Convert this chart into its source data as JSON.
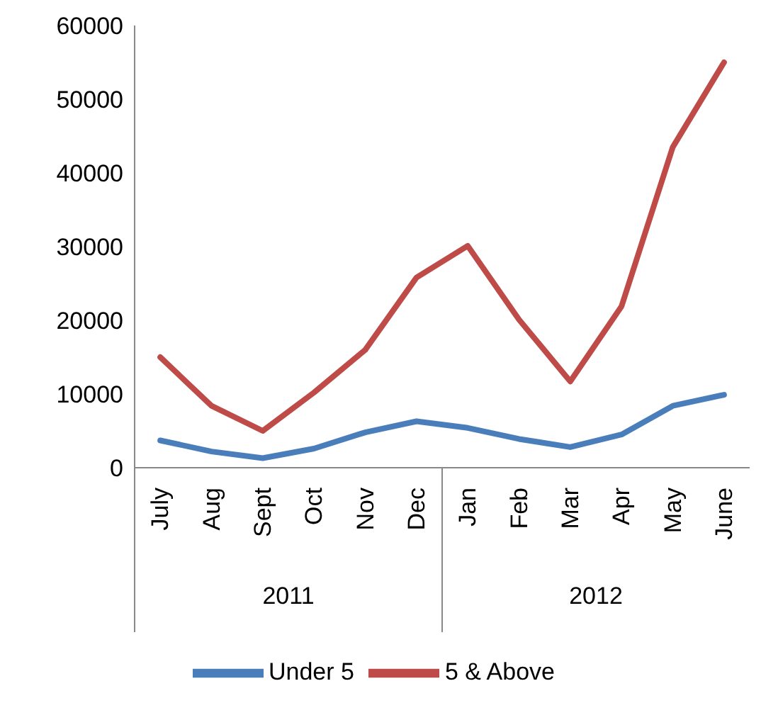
{
  "chart_data": {
    "type": "line",
    "categories": [
      "July",
      "Aug",
      "Sept",
      "Oct",
      "Nov",
      "Dec",
      "Jan",
      "Feb",
      "Mar",
      "Apr",
      "May",
      "June"
    ],
    "series": [
      {
        "name": "Under 5",
        "color": "#4a7ebb",
        "values": [
          3700,
          2200,
          1300,
          2600,
          4800,
          6300,
          5400,
          3900,
          2800,
          4500,
          8400,
          9900
        ]
      },
      {
        "name": "5 & Above",
        "color": "#be4b48",
        "values": [
          15000,
          8400,
          5000,
          10200,
          16000,
          25800,
          30100,
          20100,
          11700,
          21900,
          43500,
          55000
        ]
      }
    ],
    "ylim": [
      0,
      60000
    ],
    "yticks": [
      0,
      10000,
      20000,
      30000,
      40000,
      50000,
      60000
    ],
    "annotations": [
      "2011",
      "2012"
    ],
    "grid": false,
    "legend": "bottom",
    "marker": "none",
    "line_style": "solid"
  }
}
